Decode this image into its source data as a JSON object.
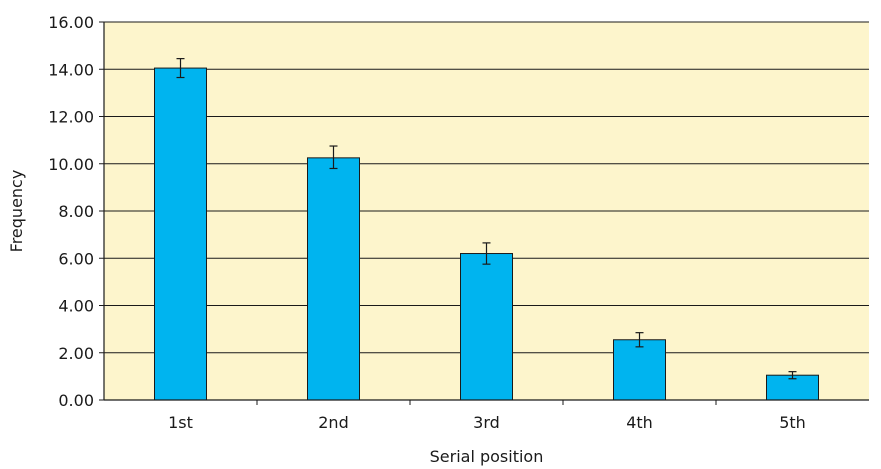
{
  "chart_data": {
    "type": "bar",
    "title": "",
    "xlabel": "Serial position",
    "ylabel": "Frequency",
    "categories": [
      "1st",
      "2nd",
      "3rd",
      "4th",
      "5th"
    ],
    "values": [
      14.05,
      10.25,
      6.2,
      2.55,
      1.05
    ],
    "error_bars": [
      [
        13.65,
        14.45
      ],
      [
        9.8,
        10.75
      ],
      [
        5.75,
        6.65
      ],
      [
        2.25,
        2.85
      ],
      [
        0.9,
        1.2
      ]
    ],
    "ylim": [
      0,
      16
    ],
    "yticks": [
      "0.00",
      "2.00",
      "4.00",
      "6.00",
      "8.00",
      "10.00",
      "12.00",
      "14.00",
      "16.00"
    ],
    "grid": true,
    "legend": "none",
    "colors": {
      "bar_fill": "#00b4ef",
      "bar_stroke": "#1a1a1a",
      "plot_background": "#fdf5cc",
      "gridline": "#1a1a1a"
    }
  }
}
